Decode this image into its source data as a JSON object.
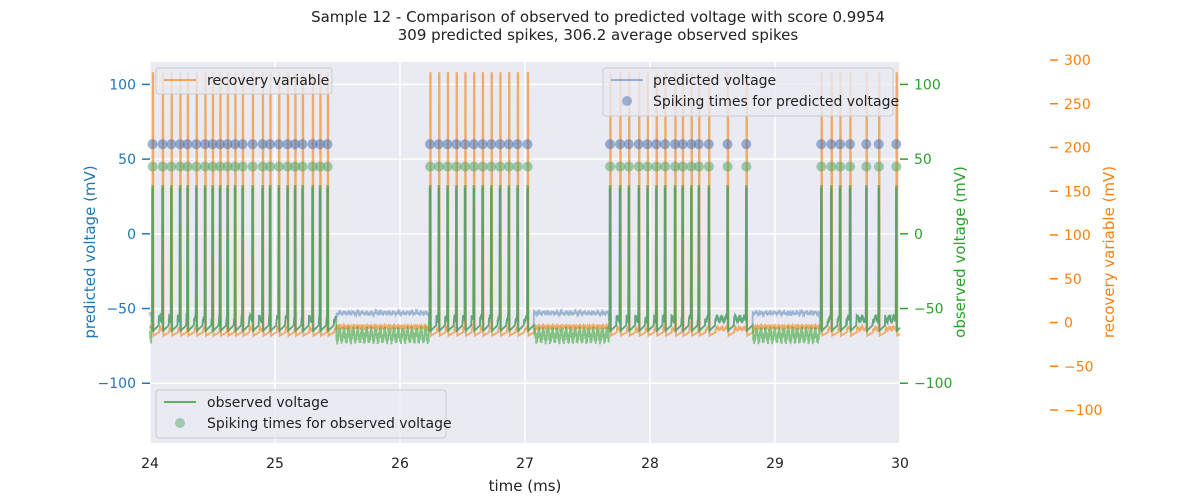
{
  "chart_data": {
    "type": "line",
    "title": "Sample 12 - Comparison of observed to predicted voltage with score 0.9954",
    "subtitle": "309 predicted spikes, 306.2 average observed spikes",
    "xlabel": "time (ms)",
    "xlim": [
      24,
      30
    ],
    "x_ticks": [
      24,
      25,
      26,
      27,
      28,
      29,
      30
    ],
    "grid": true,
    "axes": {
      "left": {
        "label": "predicted voltage (mV)",
        "ylim": [
          -140,
          115
        ],
        "ticks": [
          -100,
          -50,
          0,
          50,
          100
        ],
        "color": "#1f77b4"
      },
      "right": {
        "label": "observed voltage (mV)",
        "ylim": [
          -140,
          115
        ],
        "ticks": [
          -100,
          -50,
          0,
          50,
          100
        ],
        "color": "#2ca02c"
      },
      "outer_right": {
        "label": "recovery variable (mV)",
        "ylim": [
          -130,
          310
        ],
        "ticks": [
          -100,
          -50,
          0,
          50,
          100,
          150,
          200,
          250,
          300
        ],
        "color": "#ff7f0e"
      }
    },
    "bursts": [
      {
        "start": 24.02,
        "end": 25.45,
        "spike_times": [
          24.02,
          24.1,
          24.17,
          24.24,
          24.3,
          24.37,
          24.44,
          24.5,
          24.56,
          24.62,
          24.68,
          24.74,
          24.82,
          24.9,
          24.96,
          25.03,
          25.1,
          25.16,
          25.22,
          25.3,
          25.36,
          25.42
        ]
      },
      {
        "start": 26.24,
        "end": 27.03,
        "spike_times": [
          26.24,
          26.31,
          26.38,
          26.45,
          26.52,
          26.59,
          26.66,
          26.73,
          26.8,
          26.87,
          26.94,
          27.02
        ]
      },
      {
        "start": 27.68,
        "end": 28.78,
        "spike_times": [
          27.68,
          27.76,
          27.83,
          27.91,
          27.98,
          28.05,
          28.12,
          28.2,
          28.26,
          28.33,
          28.39,
          28.47,
          28.62,
          28.77
        ]
      },
      {
        "start": 29.37,
        "end": 29.98,
        "spike_times": [
          29.37,
          29.45,
          29.52,
          29.6,
          29.73,
          29.83,
          29.97
        ]
      }
    ],
    "series": [
      {
        "name": "predicted voltage",
        "axis": "left",
        "color": "#7a9cc6",
        "rest_mV": -53,
        "spike_peak_mV": 30,
        "trough_mV": -65
      },
      {
        "name": "Spiking times for predicted voltage",
        "axis": "left",
        "kind": "scatter",
        "color": "#4c72b0",
        "y_mV": 60
      },
      {
        "name": "observed voltage",
        "axis": "right",
        "color": "#2ca02c",
        "rest_mV": -68,
        "spike_peak_mV": 32,
        "trough_mV": -65
      },
      {
        "name": "Spiking times for observed voltage",
        "axis": "right",
        "kind": "scatter",
        "color": "#55a868",
        "y_mV": 45
      },
      {
        "name": "recovery variable",
        "axis": "outer_right",
        "color": "#f28e2b",
        "rest_mV": -5,
        "spike_peak_mV": 285,
        "trough_mV": -15
      }
    ]
  }
}
